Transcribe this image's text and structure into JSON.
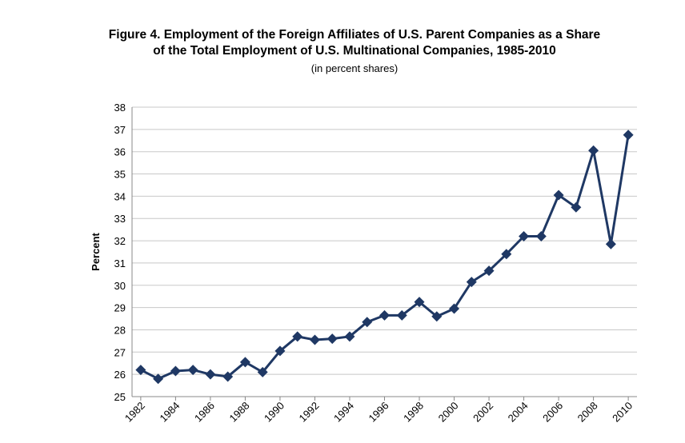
{
  "chart_data": {
    "type": "line",
    "title_line1": "Figure 4. Employment of the Foreign Affiliates of U.S. Parent Companies as a Share",
    "title_line2": "of the Total Employment of U.S. Multinational Companies, 1985-2010",
    "subtitle": "(in percent shares)",
    "xlabel": "",
    "ylabel": "Percent",
    "ylim": [
      25,
      38
    ],
    "yticks": [
      "25",
      "26",
      "27",
      "28",
      "29",
      "30",
      "31",
      "32",
      "33",
      "34",
      "35",
      "36",
      "37",
      "38"
    ],
    "x_tick_labels": [
      "1982",
      "1984",
      "1986",
      "1988",
      "1990",
      "1992",
      "1994",
      "1996",
      "1998",
      "2000",
      "2002",
      "2004",
      "2006",
      "2008",
      "2010"
    ],
    "grid": "horizontal",
    "series": [
      {
        "name": "Share",
        "color": "#1f3864",
        "x": [
          1982,
          1983,
          1984,
          1985,
          1986,
          1987,
          1988,
          1989,
          1990,
          1991,
          1992,
          1993,
          1994,
          1995,
          1996,
          1997,
          1998,
          1999,
          2000,
          2001,
          2002,
          2003,
          2004,
          2005,
          2006,
          2007,
          2008,
          2009,
          2010
        ],
        "values": [
          26.2,
          25.8,
          26.15,
          26.2,
          26.0,
          25.9,
          26.55,
          26.1,
          27.05,
          27.7,
          27.55,
          27.6,
          27.7,
          28.35,
          28.65,
          28.65,
          29.25,
          28.6,
          28.95,
          30.15,
          30.65,
          31.4,
          32.2,
          32.2,
          34.05,
          33.5,
          36.05,
          31.85,
          36.75
        ]
      }
    ]
  }
}
